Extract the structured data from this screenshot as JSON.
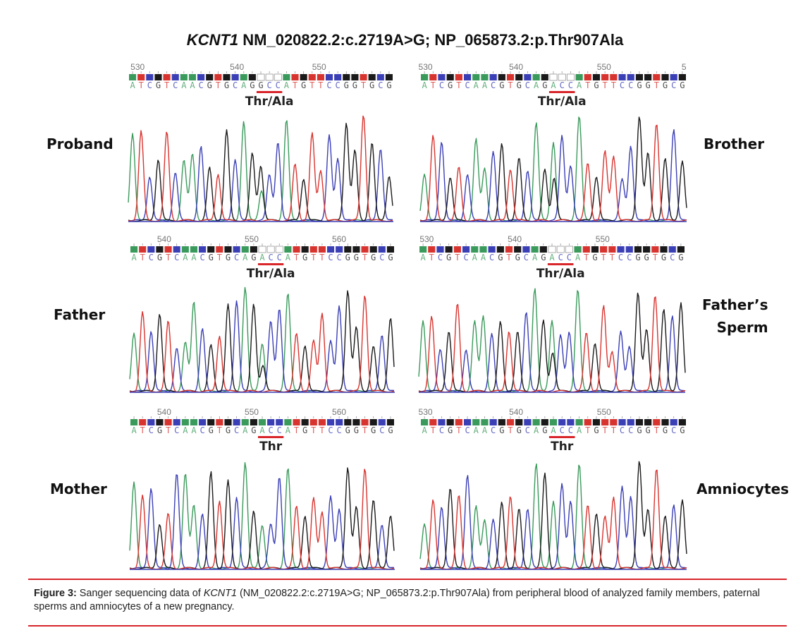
{
  "figure": {
    "title_gene": "KCNT1",
    "title_rest": " NM_020822.2:c.2719A>G; NP_065873.2:p.Thr907Ala"
  },
  "labels": {
    "proband": "Proband",
    "brother": "Brother",
    "father": "Father",
    "fathers_sperm_1": "Father’s",
    "fathers_sperm_2": "Sperm",
    "mother": "Mother",
    "amniocytes": "Amniocytes"
  },
  "panels": {
    "proband": {
      "ruler": [
        "530",
        "540",
        "550"
      ],
      "sequence": "ATCGTCAACGTGCAGGCCATGTTCCGGTGCG",
      "annotation": "Thr/Ala"
    },
    "brother": {
      "ruler": [
        "530",
        "540",
        "550",
        "5"
      ],
      "sequence": "ATCGTCAACGTGCAGACCATGTTCCGGTGCG",
      "annotation": "Thr/Ala"
    },
    "father": {
      "ruler": [
        "540",
        "550",
        "560"
      ],
      "sequence": "ATCGTCAACGTGCAGACCATGTTCCGGTGCG",
      "annotation": "Thr/Ala"
    },
    "fathers_sperm": {
      "ruler": [
        "530",
        "540",
        "550"
      ],
      "sequence": "ATCGTCAACGTGCAGACCATGTTCCGGTGCG",
      "annotation": "Thr/Ala"
    },
    "mother": {
      "ruler": [
        "540",
        "550",
        "560"
      ],
      "sequence": "ATCGTCAACGTGCAGACCATGTTCCGGTGCG",
      "annotation": "Thr"
    },
    "amniocytes": {
      "ruler": [
        "530",
        "540",
        "550"
      ],
      "sequence": "ATCGTCAACGTGCAGACCATGTTCCGGTGCG",
      "annotation": "Thr"
    }
  },
  "caption": {
    "lead": "Figure 3:",
    "text_1": " Sanger sequencing data of ",
    "gene": "KCNT1",
    "text_2": " (NM_020822.2:c.2719A>G; NP_065873.2:p.Thr907Ala) from peripheral blood of analyzed family members, paternal sperms and amniocytes of a new pregnancy."
  },
  "colors": {
    "A": "#3a9a5b",
    "C": "#3b3fb5",
    "G": "#1a1a1a",
    "T": "#d8342f",
    "underline": "#d9262b",
    "caption_rule": "#d9262b"
  }
}
